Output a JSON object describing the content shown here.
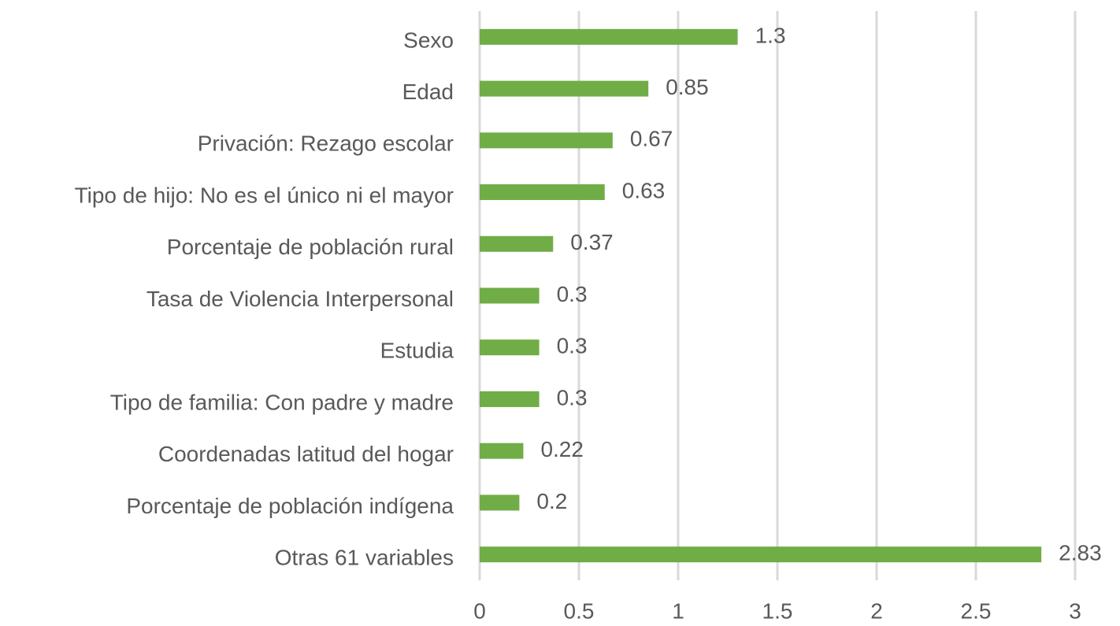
{
  "chart_data": {
    "type": "barh",
    "categories": [
      "Sexo",
      "Edad",
      "Privación: Rezago escolar",
      "Tipo de hijo: No es el único ni el mayor",
      "Porcentaje de población rural",
      "Tasa de Violencia Interpersonal",
      "Estudia",
      "Tipo de familia: Con padre y madre",
      "Coordenadas latitud del hogar",
      "Porcentaje de población indígena",
      "Otras 61 variables"
    ],
    "values": [
      1.3,
      0.85,
      0.67,
      0.63,
      0.37,
      0.3,
      0.3,
      0.3,
      0.22,
      0.2,
      2.83
    ],
    "color": "#70ad47",
    "xlim": [
      0,
      3
    ],
    "xticks": [
      0,
      0.5,
      1,
      1.5,
      2,
      2.5,
      3
    ],
    "grid": true
  }
}
